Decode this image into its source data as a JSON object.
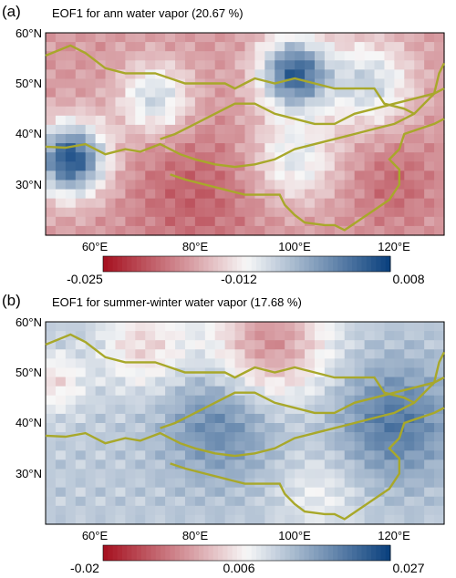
{
  "panels": [
    {
      "id": "a",
      "label": "(a)",
      "title": "EOF1 for ann water vapor (20.67 %)",
      "lat_ticks": [
        "60°N",
        "50°N",
        "40°N",
        "30°N"
      ],
      "lon_ticks": [
        "60°E",
        "80°E",
        "100°E",
        "120°E"
      ],
      "colorbar": {
        "min_label": "-0.025",
        "mid_label": "-0.012",
        "max_label": "0.008"
      },
      "pattern": "annual"
    },
    {
      "id": "b",
      "label": "(b)",
      "title": "EOF1 for summer-winter water vapor (17.68 %)",
      "lat_ticks": [
        "60°N",
        "50°N",
        "40°N",
        "30°N"
      ],
      "lon_ticks": [
        "60°E",
        "80°E",
        "100°E",
        "120°E"
      ],
      "colorbar": {
        "min_label": "-0.02",
        "mid_label": "0.006",
        "max_label": "0.027"
      },
      "pattern": "seasonal"
    }
  ],
  "map": {
    "lon_range": [
      50,
      130
    ],
    "lat_range": [
      20,
      60
    ],
    "boundary_color": "#a8a82a"
  },
  "colors": {
    "red": "#a50f1e",
    "white": "#f7f7f7",
    "blue": "#083f7d"
  }
}
